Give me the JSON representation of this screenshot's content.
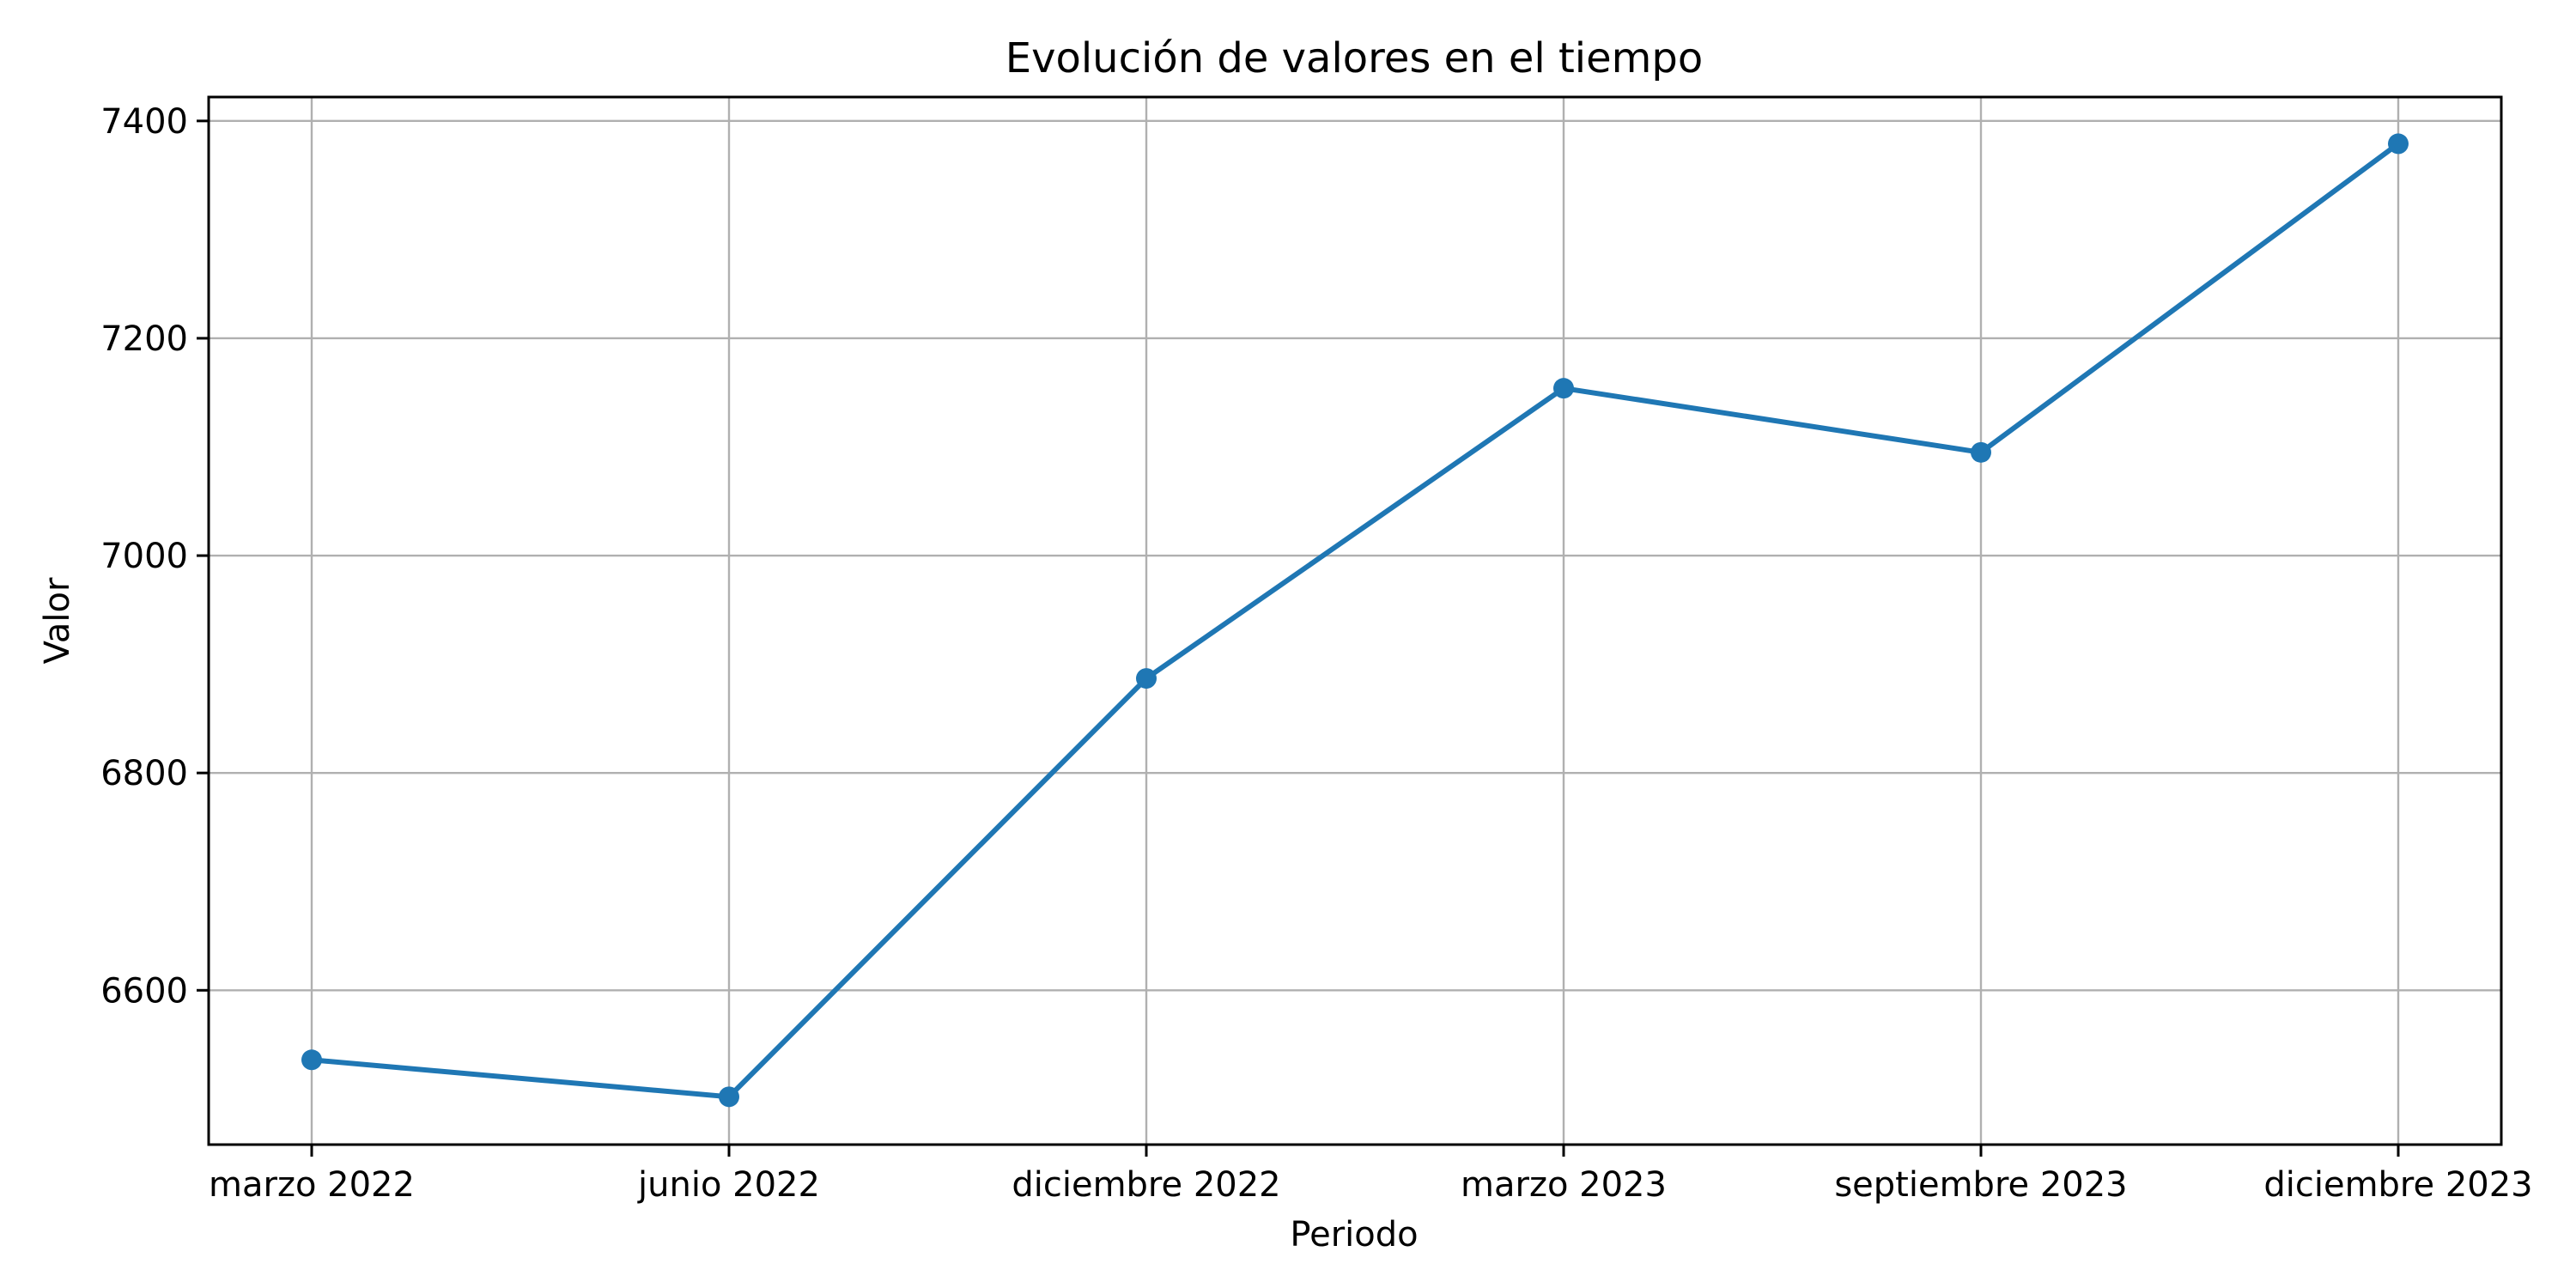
{
  "chart_data": {
    "type": "line",
    "title": "Evolución de valores en el tiempo",
    "xlabel": "Periodo",
    "ylabel": "Valor",
    "categories": [
      "marzo 2022",
      "junio 2022",
      "diciembre 2022",
      "marzo 2023",
      "septiembre 2023",
      "diciembre 2023"
    ],
    "series": [
      {
        "values": [
          6536,
          6502,
          6887,
          7154,
          7095,
          7379
        ],
        "color": "#1f77b4"
      }
    ],
    "ylim": [
      6458,
      7422
    ],
    "yticks": [
      6600,
      6800,
      7000,
      7200,
      7400
    ],
    "grid": true,
    "markers": "circle",
    "colors": {
      "line": "#1f77b4",
      "grid": "#b0b0b0",
      "axes": "#000000"
    }
  }
}
